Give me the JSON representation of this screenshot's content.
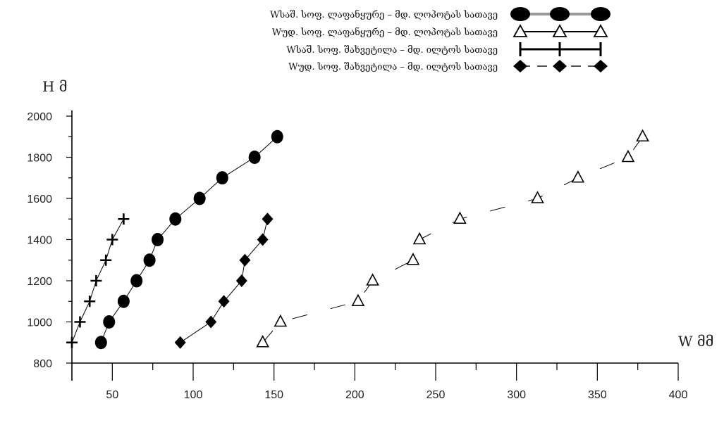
{
  "chart_data": {
    "type": "scatter",
    "title": "",
    "xlabel": "W მმ",
    "ylabel": "H მ",
    "xlim": [
      25,
      400
    ],
    "ylim": [
      800,
      2000
    ],
    "xticks": [
      50,
      100,
      150,
      200,
      250,
      300,
      350,
      400
    ],
    "yticks": [
      800,
      1000,
      1200,
      1400,
      1600,
      1800,
      2000
    ],
    "grid": false,
    "legend_position": "top-center",
    "series": [
      {
        "name": "Wსაშ. სოფ. ლაფანყურე – მდ. ლოპოტას სათავე",
        "marker": "filled-ellipse",
        "line": "solid",
        "legend_line": "solid-gray",
        "color": "#000000",
        "x": [
          43,
          48,
          57,
          65,
          73,
          78,
          89,
          104,
          118,
          138,
          152
        ],
        "y": [
          900,
          1000,
          1100,
          1200,
          1300,
          1400,
          1500,
          1600,
          1700,
          1800,
          1900
        ]
      },
      {
        "name": "Wუდ. სოფ. ლაფანყურე – მდ. ლოპოტას სათავე",
        "marker": "open-triangle",
        "line": "dashed",
        "legend_line": "solid",
        "color": "#000000",
        "x": [
          143,
          154,
          202,
          211,
          236,
          240,
          265,
          313,
          338,
          369,
          378
        ],
        "y": [
          900,
          1000,
          1100,
          1200,
          1300,
          1400,
          1500,
          1600,
          1700,
          1800,
          1900
        ]
      },
      {
        "name": "Wსაშ. სოფ. შახვეტილა – მდ. ილტოს სათავე",
        "marker": "plus",
        "line": "solid",
        "legend_line": "solid",
        "color": "#000000",
        "x": [
          25,
          30,
          36,
          40,
          46,
          50,
          57
        ],
        "y": [
          900,
          1000,
          1100,
          1200,
          1300,
          1400,
          1500
        ]
      },
      {
        "name": "Wუდ. სოფ. შახვეტილა – მდ. ილტოს სათავე",
        "marker": "filled-diamond",
        "line": "solid",
        "legend_line": "dashed",
        "color": "#000000",
        "x": [
          92,
          111,
          119,
          130,
          132,
          143,
          146
        ],
        "y": [
          900,
          1000,
          1100,
          1200,
          1300,
          1400,
          1500
        ]
      }
    ]
  }
}
